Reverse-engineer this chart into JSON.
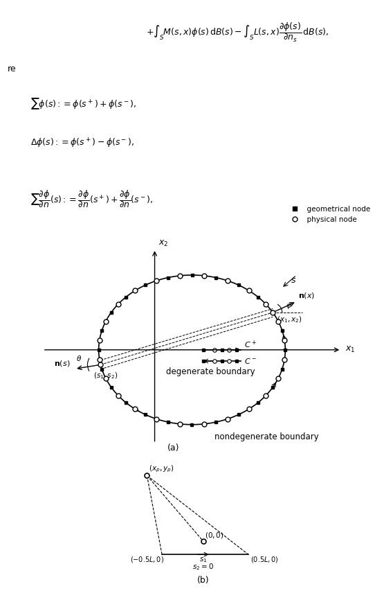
{
  "fig_width": 5.55,
  "fig_height": 8.63,
  "bg_color": "#ffffff",
  "formula1": "+ \\int_S M(s,x)\\phi(s)\\,\\mathrm{d}B(s) - \\int_S L(s,x)\\frac{\\partial\\phi(s)}{\\partial n_s}\\,\\mathrm{d}B(s),",
  "label_re": "re",
  "formula2": "\\sum\\phi(s) := \\phi(s^+) + \\phi(s^-),",
  "formula3": "\\Delta\\phi(s) := \\phi(s^+) - \\phi(s^-),",
  "formula4": "\\sum\\frac{\\partial\\phi}{\\partial n}(s) := \\frac{\\partial\\phi}{\\partial n}(s^+) + \\frac{\\partial\\phi}{\\partial n}(s^-),",
  "caption_a": "(a)",
  "caption_b": "(b)"
}
